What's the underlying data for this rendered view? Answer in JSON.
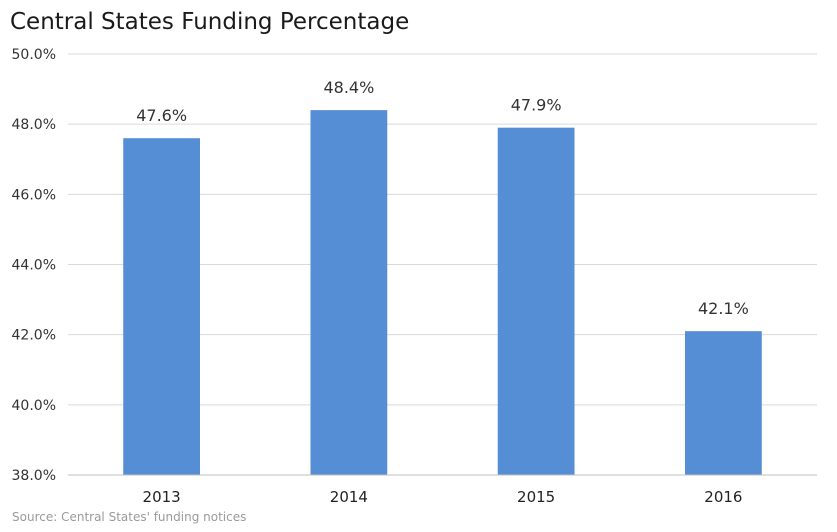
{
  "chart_data": {
    "type": "bar",
    "title": "Central States Funding Percentage",
    "categories": [
      "2013",
      "2014",
      "2015",
      "2016"
    ],
    "values": [
      47.6,
      48.4,
      47.9,
      42.1
    ],
    "data_labels": [
      "47.6%",
      "48.4%",
      "47.9%",
      "42.1%"
    ],
    "ylim": [
      38.0,
      50.0
    ],
    "yticks": [
      38.0,
      40.0,
      42.0,
      44.0,
      46.0,
      48.0,
      50.0
    ],
    "ytick_labels": [
      "38.0%",
      "40.0%",
      "42.0%",
      "44.0%",
      "46.0%",
      "48.0%",
      "50.0%"
    ],
    "xlabel": "",
    "ylabel": "",
    "grid": true,
    "legend": "none",
    "bar_color": "#558ED5"
  },
  "source_note": "Source: Central States' funding notices"
}
